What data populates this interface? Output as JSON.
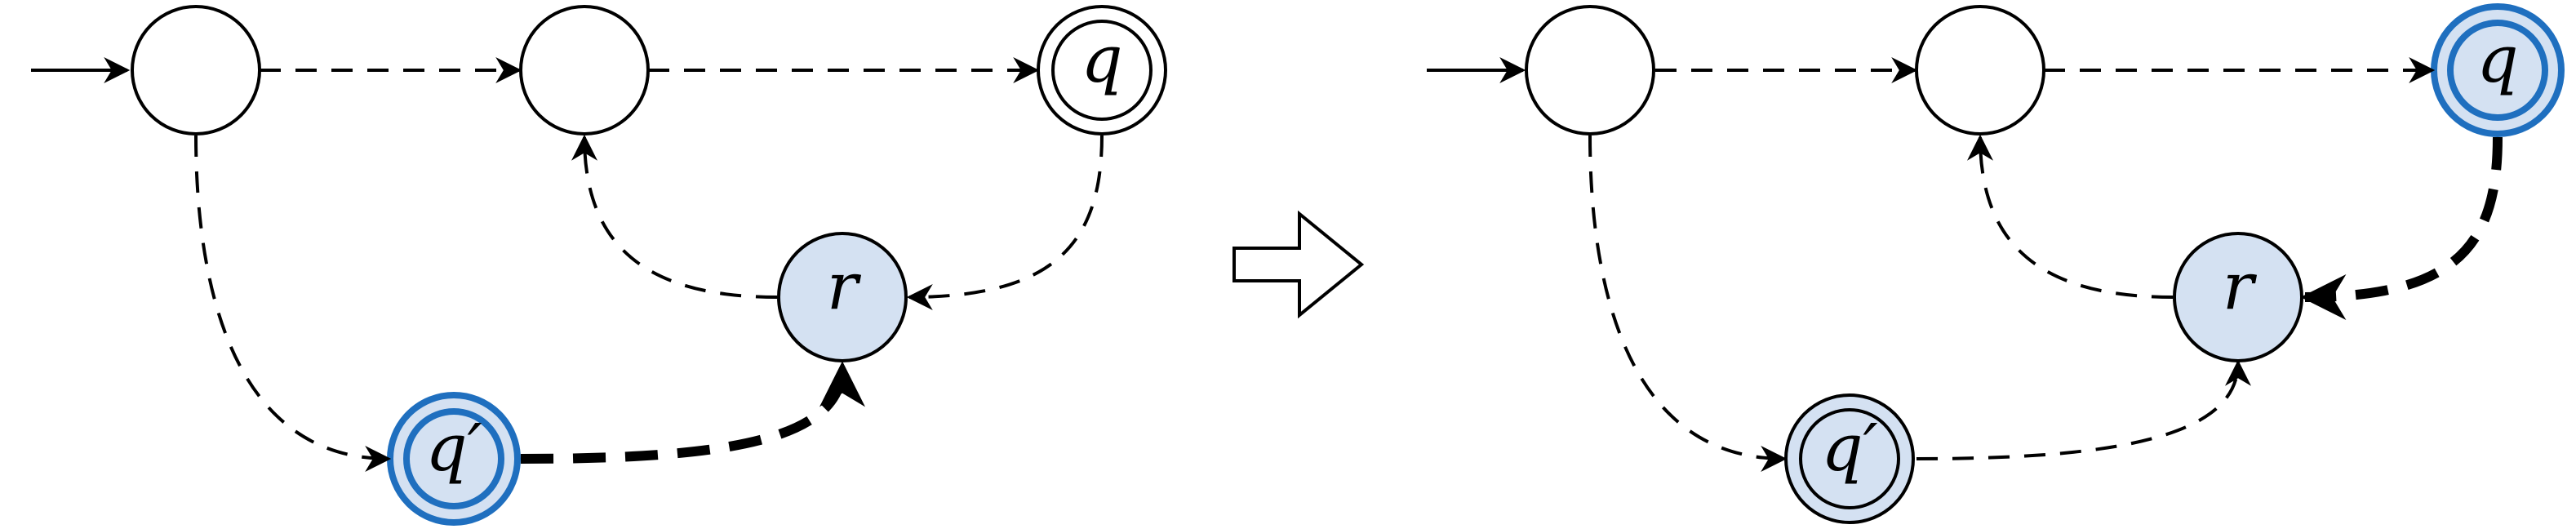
{
  "colors": {
    "stroke": "#000000",
    "highlight": "#1f6fbf",
    "state_fill_blue": "#d4e1f2",
    "background": "#ffffff"
  },
  "diagram": {
    "before": {
      "label_q": "q",
      "label_r": "r",
      "label_q_prime": "q′"
    },
    "transform_arrow": {
      "icon": "right-block-arrow"
    },
    "after": {
      "label_q": "q",
      "label_r": "r",
      "label_q_prime": "q′"
    }
  }
}
